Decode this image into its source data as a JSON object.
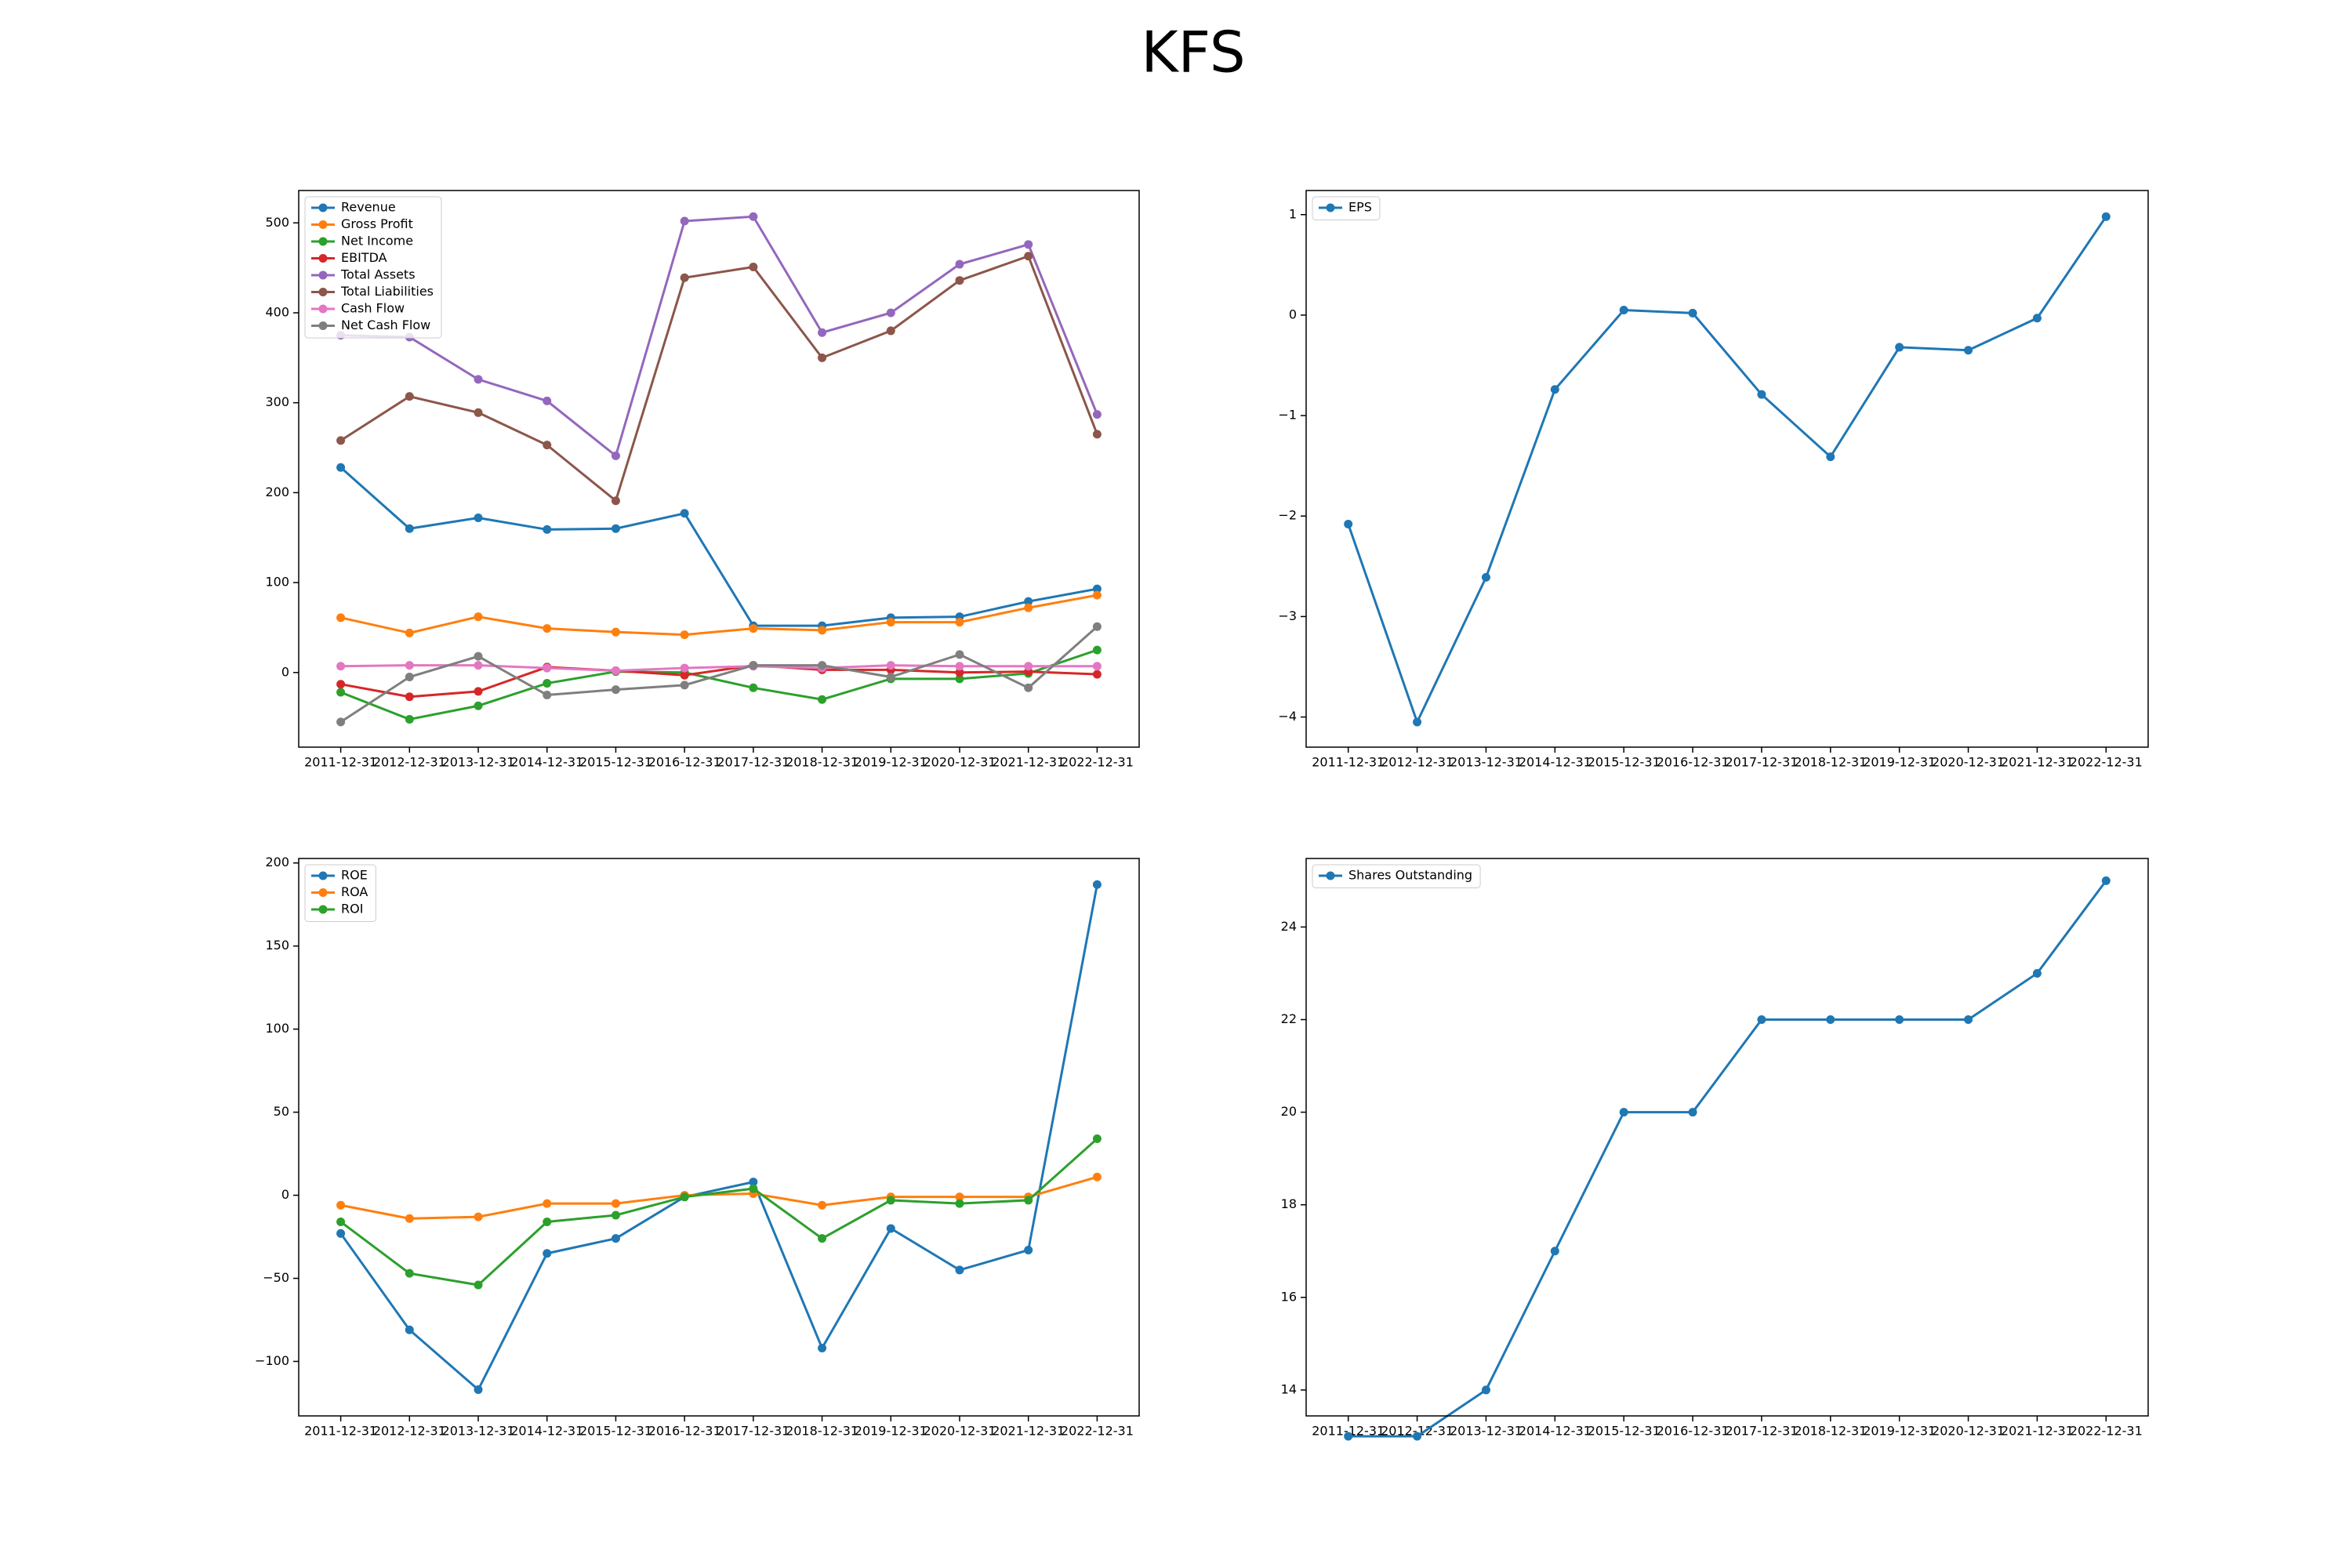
{
  "title": "KFS",
  "chart_data": [
    {
      "type": "line",
      "legend": "upper left",
      "categories": [
        "2011-12-31",
        "2012-12-31",
        "2013-12-31",
        "2014-12-31",
        "2015-12-31",
        "2016-12-31",
        "2017-12-31",
        "2018-12-31",
        "2019-12-31",
        "2020-12-31",
        "2021-12-31",
        "2022-12-31"
      ],
      "ylim": [
        -83,
        536
      ],
      "yticks": [
        0,
        100,
        200,
        300,
        400,
        500
      ],
      "series": [
        {
          "name": "Revenue",
          "color": "#1f77b4",
          "values": [
            228,
            160,
            172,
            159,
            160,
            177,
            52,
            52,
            61,
            62,
            79,
            93
          ]
        },
        {
          "name": "Gross Profit",
          "color": "#ff7f0e",
          "values": [
            61,
            44,
            62,
            49,
            45,
            42,
            49,
            47,
            56,
            56,
            72,
            86
          ]
        },
        {
          "name": "Net Income",
          "color": "#2ca02c",
          "values": [
            -22,
            -52,
            -37,
            -12,
            1,
            0,
            -17,
            -30,
            -7,
            -7,
            -1,
            25
          ]
        },
        {
          "name": "EBITDA",
          "color": "#d62728",
          "values": [
            -13,
            -27,
            -21,
            6,
            2,
            -3,
            8,
            3,
            3,
            0,
            1,
            -2
          ]
        },
        {
          "name": "Total Assets",
          "color": "#9467bd",
          "values": [
            375,
            373,
            326,
            302,
            241,
            502,
            507,
            378,
            400,
            454,
            476,
            287
          ]
        },
        {
          "name": "Total Liabilities",
          "color": "#8c564b",
          "values": [
            258,
            307,
            289,
            253,
            191,
            439,
            451,
            350,
            380,
            436,
            463,
            265
          ]
        },
        {
          "name": "Cash Flow",
          "color": "#e377c2",
          "values": [
            7,
            8,
            8,
            5,
            2,
            5,
            7,
            5,
            8,
            7,
            7,
            7
          ]
        },
        {
          "name": "Net Cash Flow",
          "color": "#7f7f7f",
          "values": [
            -55,
            -5,
            18,
            -25,
            -19,
            -14,
            8,
            8,
            -5,
            20,
            -17,
            51
          ]
        }
      ]
    },
    {
      "type": "line",
      "legend": "upper left",
      "categories": [
        "2011-12-31",
        "2012-12-31",
        "2013-12-31",
        "2014-12-31",
        "2015-12-31",
        "2016-12-31",
        "2017-12-31",
        "2018-12-31",
        "2019-12-31",
        "2020-12-31",
        "2021-12-31",
        "2022-12-31"
      ],
      "ylim": [
        -4.3,
        1.24
      ],
      "yticks": [
        {
          "value": -4,
          "label": "−4"
        },
        {
          "value": -3,
          "label": "−3"
        },
        {
          "value": -2,
          "label": "−2"
        },
        {
          "value": -1,
          "label": "−1"
        },
        0,
        1
      ],
      "series": [
        {
          "name": "EPS",
          "color": "#1f77b4",
          "values": [
            -2.08,
            -4.05,
            -2.61,
            -0.74,
            0.05,
            0.02,
            -0.79,
            -1.41,
            -0.32,
            -0.35,
            -0.03,
            0.98
          ]
        }
      ]
    },
    {
      "type": "line",
      "legend": "upper left",
      "categories": [
        "2011-12-31",
        "2012-12-31",
        "2013-12-31",
        "2014-12-31",
        "2015-12-31",
        "2016-12-31",
        "2017-12-31",
        "2018-12-31",
        "2019-12-31",
        "2020-12-31",
        "2021-12-31",
        "2022-12-31"
      ],
      "ylim": [
        -132.8,
        202.7
      ],
      "yticks": [
        {
          "value": -100,
          "label": "−100"
        },
        {
          "value": -50,
          "label": "−50"
        },
        0,
        50,
        100,
        150,
        200
      ],
      "series": [
        {
          "name": "ROE",
          "color": "#1f77b4",
          "values": [
            -23,
            -81,
            -117,
            -35,
            -26,
            -1,
            8,
            -92,
            -20,
            -45,
            -33,
            187
          ]
        },
        {
          "name": "ROA",
          "color": "#ff7f0e",
          "values": [
            -6,
            -14,
            -13,
            -5,
            -5,
            0,
            1,
            -6,
            -1,
            -1,
            -1,
            11
          ]
        },
        {
          "name": "ROI",
          "color": "#2ca02c",
          "values": [
            -16,
            -47,
            -54,
            -16,
            -12,
            -1,
            4,
            -26,
            -3,
            -5,
            -3,
            34
          ]
        }
      ]
    },
    {
      "type": "line",
      "legend": "upper left",
      "categories": [
        "2011-12-31",
        "2012-12-31",
        "2013-12-31",
        "2014-12-31",
        "2015-12-31",
        "2016-12-31",
        "2017-12-31",
        "2018-12-31",
        "2019-12-31",
        "2020-12-31",
        "2021-12-31",
        "2022-12-31"
      ],
      "ylim": [
        13.44,
        25.48
      ],
      "yticks": [
        14,
        16,
        18,
        20,
        22,
        24
      ],
      "series": [
        {
          "name": "Shares Outstanding",
          "color": "#1f77b4",
          "values": [
            13,
            13,
            14,
            17,
            20,
            20,
            22,
            22,
            22,
            22,
            23,
            25
          ]
        }
      ]
    }
  ]
}
